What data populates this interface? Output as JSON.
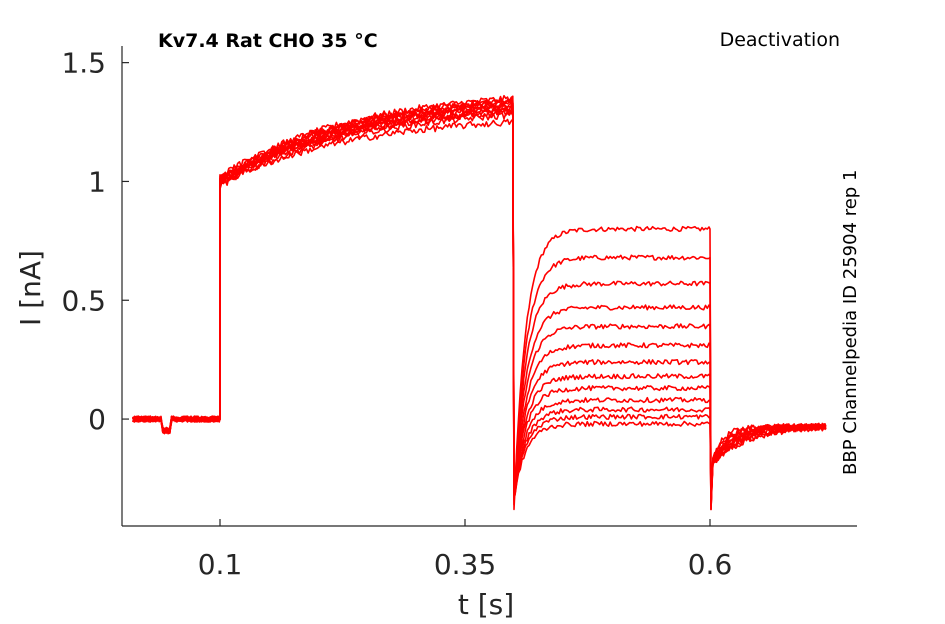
{
  "title": "Kv7.4  Rat  CHO  35 °C",
  "protocol": "Deactivation",
  "source": "BBP Channelpedia ID 25904 rep 1",
  "colors": {
    "trace": "#ff0000",
    "axis": "#262626",
    "background": "#ffffff"
  },
  "chart_data": {
    "type": "line",
    "xlabel": "t [s]",
    "ylabel": "I [nA]",
    "xlim": [
      0,
      0.75
    ],
    "ylim": [
      -0.45,
      1.57
    ],
    "xticks": [
      0.1,
      0.35,
      0.6
    ],
    "xtick_labels": [
      "0.1",
      "0.35",
      "0.6"
    ],
    "yticks": [
      0,
      0.5,
      1,
      1.5
    ],
    "ytick_labels": [
      "0",
      "0.5",
      "1",
      "1.5"
    ],
    "grid": false,
    "box": "left-bottom axes only",
    "step_times": {
      "holding_end": 0.1,
      "prepulse_end": 0.4,
      "test_end": 0.6,
      "record_end": 0.72
    },
    "holding_current": 0.0,
    "holding_dip": {
      "t_start": 0.04,
      "t_end": 0.05,
      "value": -0.07
    },
    "prepulse": {
      "start_values": [
        0.99,
        1.0,
        1.01,
        1.02,
        1.0,
        0.98,
        1.0,
        1.01,
        1.02,
        0.99,
        1.0,
        0.99,
        1.0
      ],
      "end_values": [
        1.32,
        1.33,
        1.34,
        1.35,
        1.3,
        1.28,
        1.31,
        1.33,
        1.34,
        1.3,
        1.29,
        1.25,
        1.32
      ]
    },
    "test_step_levels": [
      0.8,
      0.68,
      0.57,
      0.47,
      0.39,
      0.31,
      0.24,
      0.18,
      0.13,
      0.08,
      0.04,
      0.01,
      -0.02
    ],
    "test_step_min": -0.38,
    "tail_step_min": -0.38,
    "tail_end_value": -0.03,
    "series_count": 13
  }
}
